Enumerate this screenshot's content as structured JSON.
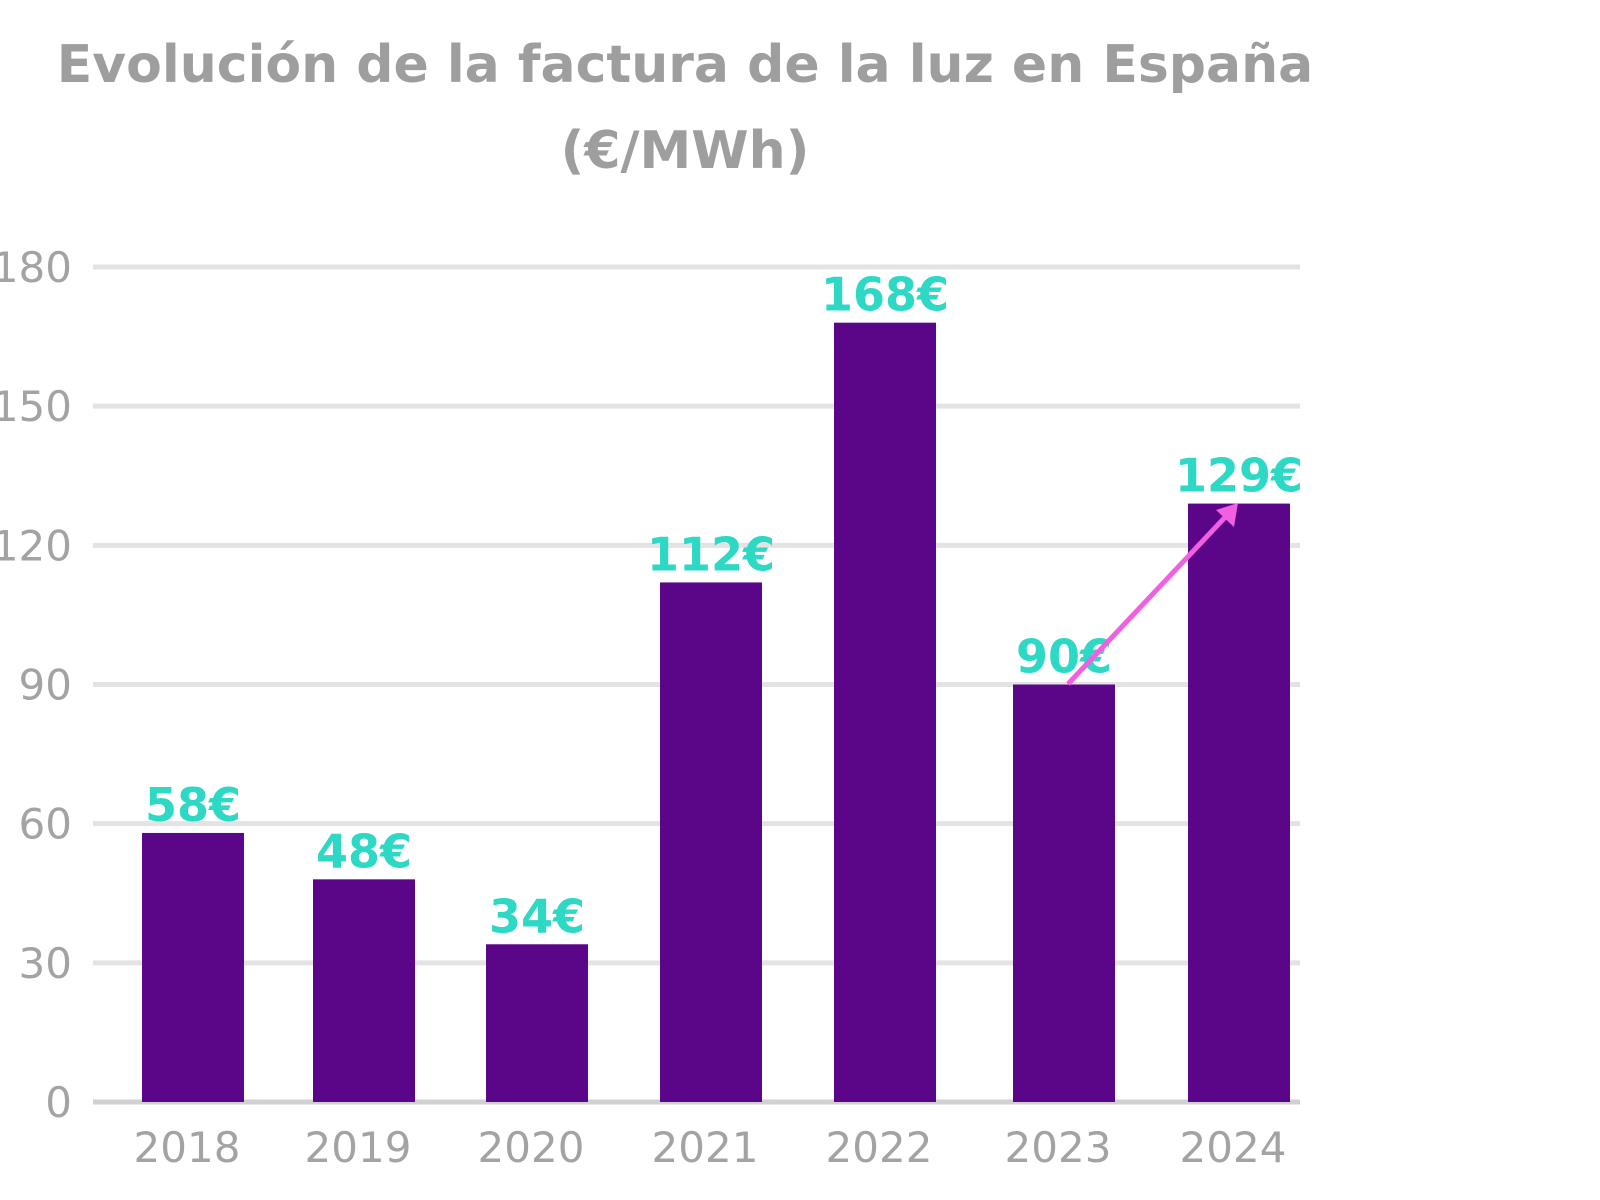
{
  "chart_data": {
    "type": "bar",
    "title_line1": "Evolución de la factura de la luz en España",
    "title_line2": "(€/MWh)",
    "categories": [
      "2018",
      "2019",
      "2020",
      "2021",
      "2022",
      "2023",
      "2024"
    ],
    "values": [
      58,
      48,
      34,
      112,
      168,
      90,
      129
    ],
    "data_labels": [
      "58€",
      "48€",
      "34€",
      "112€",
      "168€",
      "90€",
      "129€"
    ],
    "ylim": [
      0,
      180
    ],
    "yticks": [
      0,
      30,
      60,
      90,
      120,
      150,
      180
    ],
    "grid": true,
    "annotation": "arrow from 2023 to 2024 indicating increase",
    "colors": {
      "bar": "#5b0689",
      "data_label": "#2dd8c4",
      "title": "#9e9e9e",
      "grid": "#e3e3e3",
      "arrow": "#f060e0"
    }
  }
}
